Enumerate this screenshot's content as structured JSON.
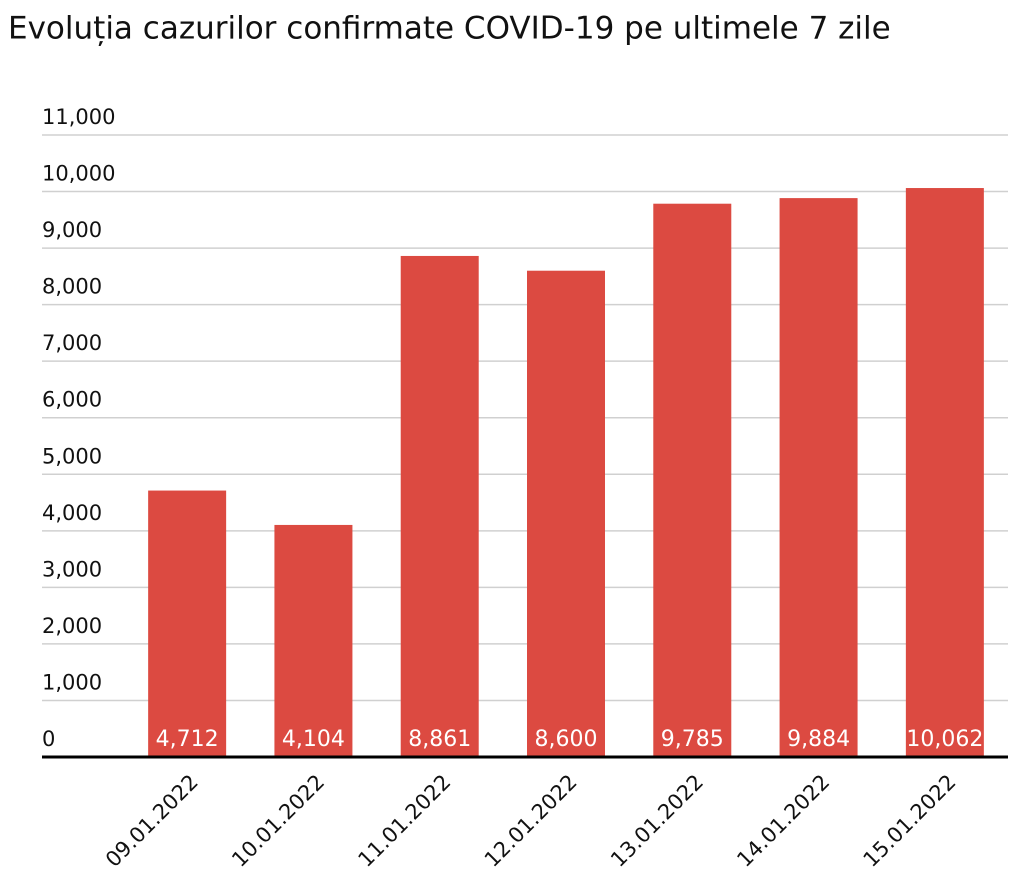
{
  "chart_data": {
    "type": "bar",
    "title": "Evoluția cazurilor confirmate COVID-19 pe ultimele 7 zile",
    "categories": [
      "09.01.2022",
      "10.01.2022",
      "11.01.2022",
      "12.01.2022",
      "13.01.2022",
      "14.01.2022",
      "15.01.2022"
    ],
    "values": [
      4712,
      4104,
      8861,
      8600,
      9785,
      9884,
      10062
    ],
    "value_labels": [
      "4,712",
      "4,104",
      "8,861",
      "8,600",
      "9,785",
      "9,884",
      "10,062"
    ],
    "color": "#dc4a41",
    "ylim": [
      0,
      11000
    ],
    "yticks": [
      0,
      {
        "value": 1000,
        "label": "1,000"
      },
      {
        "value": 2000,
        "label": "2,000"
      },
      {
        "value": 3000,
        "label": "3,000"
      },
      {
        "value": 4000,
        "label": "4,000"
      },
      {
        "value": 5000,
        "label": "5,000"
      },
      {
        "value": 6000,
        "label": "6,000"
      },
      {
        "value": 7000,
        "label": "7,000"
      },
      {
        "value": 8000,
        "label": "8,000"
      },
      {
        "value": 9000,
        "label": "9,000"
      },
      {
        "value": 10000,
        "label": "10,000"
      },
      {
        "value": 11000,
        "label": "11,000"
      }
    ],
    "grid": true
  }
}
